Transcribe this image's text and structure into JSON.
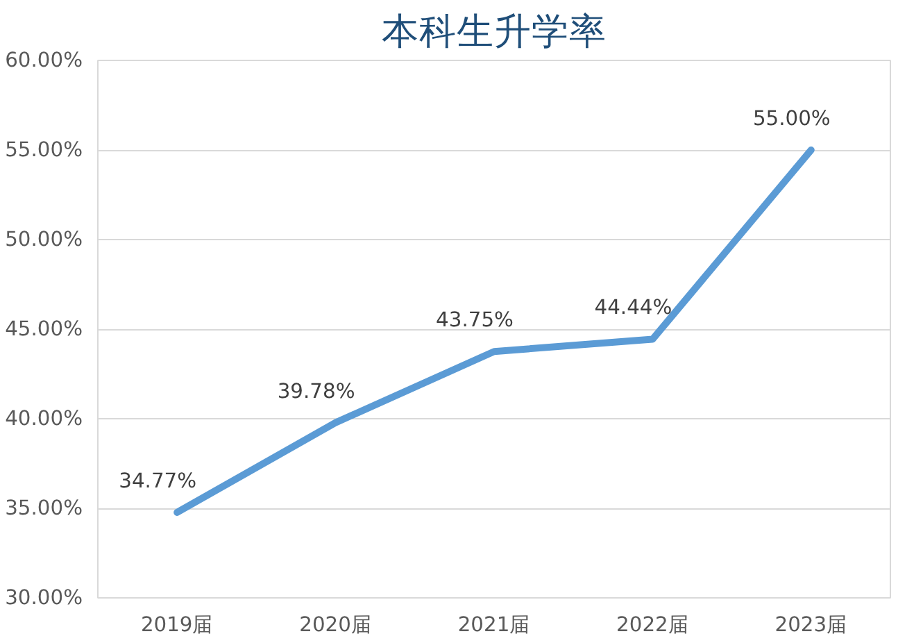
{
  "chart_data": {
    "type": "line",
    "title": "本科生升学率",
    "categories": [
      "2019届",
      "2020届",
      "2021届",
      "2022届",
      "2023届"
    ],
    "series": [
      {
        "color": "#5b9bd5",
        "values": [
          34.77,
          39.78,
          43.75,
          44.44,
          55.0
        ],
        "value_labels": [
          "34.77%",
          "39.78%",
          "43.75%",
          "44.44%",
          "55.00%"
        ]
      }
    ],
    "ylim": [
      30,
      60
    ],
    "yticks": [
      {
        "value": 30,
        "label": "30.00%"
      },
      {
        "value": 35,
        "label": "35.00%"
      },
      {
        "value": 40,
        "label": "40.00%"
      },
      {
        "value": 45,
        "label": "45.00%"
      },
      {
        "value": 50,
        "label": "50.00%"
      },
      {
        "value": 55,
        "label": "55.00%"
      },
      {
        "value": 60,
        "label": "60.00%"
      }
    ],
    "grid": "y",
    "marker": "none",
    "line_style": "solid"
  }
}
